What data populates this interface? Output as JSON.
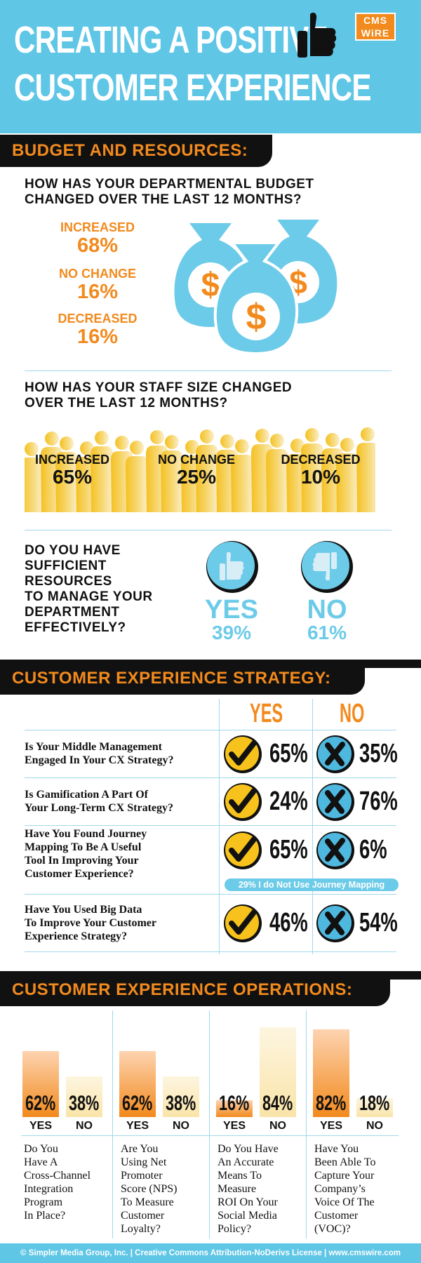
{
  "header": {
    "title_line1": "CREATING A POSITIVE",
    "title_line2": "CUSTOMER EXPERIENCE",
    "logo_line1": "CMS",
    "logo_line2": "WiRE"
  },
  "budget_section": {
    "banner": "BUDGET AND RESOURCES:",
    "budget_question_line1": "HOW HAS YOUR DEPARTMENTAL BUDGET",
    "budget_question_line2": "CHANGED OVER THE LAST 12 MONTHS?",
    "staff_question_line1": "HOW HAS YOUR STAFF SIZE CHANGED",
    "staff_question_line2": "OVER THE LAST 12 MONTHS?",
    "resources_question_lines": [
      "DO YOU HAVE",
      "SUFFICIENT",
      "RESOURCES",
      "TO MANAGE YOUR",
      "DEPARTMENT",
      "EFFECTIVELY?"
    ],
    "dollar_symbol": "$"
  },
  "cx_strategy": {
    "banner": "CUSTOMER EXPERIENCE STRATEGY:",
    "yes_header": "YES",
    "no_header": "NO",
    "journey_note": "29% I do Not Use Journey Mapping"
  },
  "cx_operations": {
    "banner": "CUSTOMER EXPERIENCE OPERATIONS:"
  },
  "footer": {
    "text": "© Simpler Media Group, Inc. | Creative Commons Attribution-NoDerivs License | www.cmswire.com"
  },
  "colors": {
    "header_blue": "#5fc6e6",
    "accent_orange": "#f28a1d",
    "light_blue": "#6ccbe8",
    "check_yellow": "#f7c21b",
    "x_blue": "#4fb8df",
    "staff_yellow": "#f5c842"
  },
  "icons": {
    "thumb_up_header": "thumbs-up-icon",
    "money_bag": "money-bag-icon",
    "yes_thumb": "thumbs-up-icon",
    "no_thumb": "thumbs-down-icon",
    "check": "check-icon",
    "cross": "x-icon"
  },
  "chart_data": [
    {
      "type": "table",
      "title": "HOW HAS YOUR DEPARTMENTAL BUDGET CHANGED OVER THE LAST 12 MONTHS?",
      "categories": [
        "INCREASED",
        "NO CHANGE",
        "DECREASED"
      ],
      "values_display": [
        "68%",
        "16%",
        "16%"
      ],
      "values": [
        68,
        16,
        16
      ]
    },
    {
      "type": "table",
      "title": "HOW HAS YOUR STAFF SIZE CHANGED OVER THE LAST 12 MONTHS?",
      "categories": [
        "INCREASED",
        "NO CHANGE",
        "DECREASED"
      ],
      "values_display": [
        "65%",
        "25%",
        "10%"
      ],
      "values": [
        65,
        25,
        10
      ]
    },
    {
      "type": "table",
      "title": "DO YOU HAVE SUFFICIENT RESOURCES TO MANAGE YOUR DEPARTMENT EFFECTIVELY?",
      "categories": [
        "YES",
        "NO"
      ],
      "values_display": [
        "39%",
        "61%"
      ],
      "values": [
        39,
        61
      ]
    },
    {
      "type": "table",
      "title": "CUSTOMER EXPERIENCE STRATEGY:",
      "columns": [
        "YES",
        "NO"
      ],
      "rows": [
        {
          "question_lines": [
            "Is Your Middle Management",
            "Engaged In Your CX Strategy?"
          ],
          "yes": "65%",
          "no": "35%"
        },
        {
          "question_lines": [
            "Is Gamification A Part Of",
            "Your Long-Term CX Strategy?"
          ],
          "yes": "24%",
          "no": "76%"
        },
        {
          "question_lines": [
            "Have You Found Journey",
            "Mapping To Be A Useful",
            "Tool In Improving Your",
            "Customer Experience?"
          ],
          "yes": "65%",
          "no": "6%"
        },
        {
          "question_lines": [
            "Have You Used Big Data",
            "To Improve Your Customer",
            "Experience Strategy?"
          ],
          "yes": "46%",
          "no": "54%"
        }
      ]
    },
    {
      "type": "bar",
      "title": "CUSTOMER EXPERIENCE OPERATIONS:",
      "categories": [
        "YES",
        "NO"
      ],
      "ylim": [
        0,
        100
      ],
      "groups": [
        {
          "question_lines": [
            "Do You",
            "Have A",
            "Cross-Channel",
            "Integration",
            "Program",
            "In Place?"
          ],
          "yes": 62,
          "no": 38,
          "yes_label": "62%",
          "no_label": "38%"
        },
        {
          "question_lines": [
            "Are You",
            "Using Net",
            "Promoter",
            "Score (NPS)",
            "To Measure",
            "Customer",
            "Loyalty?"
          ],
          "yes": 62,
          "no": 38,
          "yes_label": "62%",
          "no_label": "38%"
        },
        {
          "question_lines": [
            "Do You Have",
            "An Accurate",
            "Means To",
            "Measure",
            "ROI On Your",
            "Social Media",
            "Policy?"
          ],
          "yes": 16,
          "no": 84,
          "yes_label": "16%",
          "no_label": "84%"
        },
        {
          "question_lines": [
            "Have You",
            "Been Able To",
            "Capture Your",
            "Company’s",
            "Voice Of The",
            "Customer",
            "(VOC)?"
          ],
          "yes": 82,
          "no": 18,
          "yes_label": "82%",
          "no_label": "18%"
        }
      ]
    }
  ]
}
